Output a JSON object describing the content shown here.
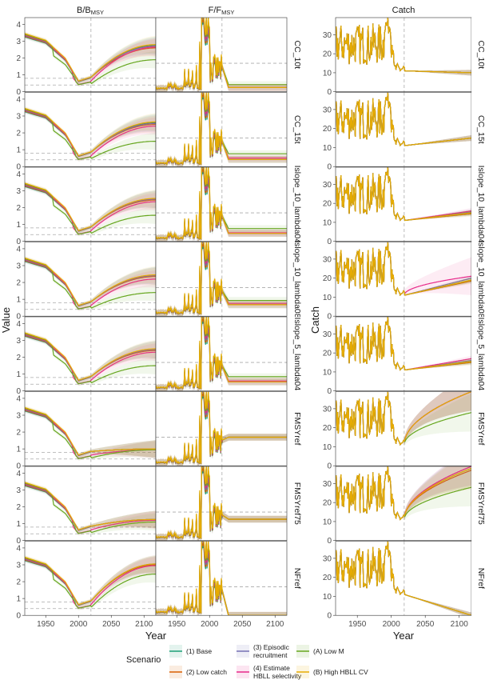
{
  "chart_data": [
    {
      "type": "line",
      "panel_group": "left",
      "columns": [
        {
          "title_main": "B/B",
          "title_sub": "MSY",
          "ylim": [
            0,
            4.4
          ],
          "yticks": [
            0,
            1,
            2,
            3,
            4
          ]
        },
        {
          "title_main": "F/F",
          "title_sub": "MSY",
          "ylim": [
            0,
            2.6
          ],
          "yticks": []
        }
      ],
      "xlabel": "Year",
      "ylabel": "Value",
      "xlim": [
        1918,
        2118
      ],
      "xticks": [
        1950,
        2000,
        2050,
        2100
      ],
      "projection_start": 2019,
      "b_reference_lines": [
        0.4,
        0.8
      ],
      "f_reference_line": 1.0
    },
    {
      "type": "line",
      "panel_group": "right",
      "title": "Catch",
      "xlabel": "Year",
      "ylabel": "Catch",
      "xlim": [
        1918,
        2118
      ],
      "xticks": [
        1950,
        2000,
        2050,
        2100
      ],
      "ylim": [
        0,
        39
      ],
      "yticks": [
        0,
        10,
        20,
        30
      ],
      "projection_start": 2019
    }
  ],
  "rows": [
    {
      "label": "CC_10t",
      "b_end": [
        2.75,
        2.6,
        2.7,
        2.65,
        1.9,
        2.8
      ],
      "f_end": [
        0.15,
        0.15,
        0.15,
        0.15,
        0.25,
        0.15
      ],
      "catch_end": [
        10,
        10,
        10,
        10,
        10,
        10
      ]
    },
    {
      "label": "CC_15t",
      "b_end": [
        2.6,
        2.5,
        2.55,
        2.4,
        1.5,
        2.65
      ],
      "f_end": [
        0.25,
        0.25,
        0.25,
        0.3,
        0.45,
        0.25
      ],
      "catch_end": [
        15,
        15,
        15,
        15,
        15,
        15
      ]
    },
    {
      "label": "Islope_10_lambda04",
      "b_end": [
        2.5,
        2.45,
        2.5,
        2.35,
        1.55,
        2.55
      ],
      "f_end": [
        0.28,
        0.28,
        0.28,
        0.3,
        0.45,
        0.28
      ],
      "catch_end": [
        15,
        14.5,
        15.5,
        16,
        15,
        15
      ]
    },
    {
      "label": "Islope_10_lambda08",
      "b_end": [
        2.4,
        2.35,
        2.4,
        2.2,
        1.4,
        2.45
      ],
      "f_end": [
        0.4,
        0.4,
        0.4,
        0.45,
        0.55,
        0.4
      ],
      "catch_end": [
        19,
        18.5,
        20,
        21,
        19,
        19
      ]
    },
    {
      "label": "Islope_5_lambda04",
      "b_end": [
        2.45,
        2.4,
        2.45,
        2.3,
        1.5,
        2.5
      ],
      "f_end": [
        0.32,
        0.32,
        0.32,
        0.35,
        0.5,
        0.32
      ],
      "catch_end": [
        15.5,
        15,
        16,
        17,
        15.5,
        15.5
      ]
    },
    {
      "label": "FMSYref",
      "b_end": [
        1.0,
        1.0,
        1.0,
        0.95,
        0.95,
        1.0
      ],
      "f_end": [
        1.0,
        1.0,
        1.0,
        1.0,
        1.0,
        1.0
      ],
      "catch_end": [
        39,
        39,
        39,
        39,
        28,
        39
      ]
    },
    {
      "label": "FMSYref75",
      "b_end": [
        1.25,
        1.25,
        1.25,
        1.2,
        1.1,
        1.25
      ],
      "f_end": [
        0.75,
        0.75,
        0.75,
        0.75,
        0.75,
        0.75
      ],
      "catch_end": [
        38,
        37,
        39,
        39,
        28,
        38
      ]
    },
    {
      "label": "NFref",
      "b_end": [
        3.0,
        3.0,
        3.05,
        2.95,
        2.45,
        3.05
      ],
      "f_end": [
        0,
        0,
        0,
        0,
        0,
        0
      ],
      "catch_end": [
        0,
        0,
        0,
        0,
        0,
        0
      ]
    }
  ],
  "series": [
    {
      "name": "(1) Base",
      "color": "#1b9e77"
    },
    {
      "name": "(2) Low catch",
      "color": "#d95f02"
    },
    {
      "name": "(3) Episodic recruitment",
      "color": "#7570b3"
    },
    {
      "name": "(4) Estimate HBLL selectivity",
      "color": "#e7298a"
    },
    {
      "name": "(A) Low M",
      "color": "#66a61e"
    },
    {
      "name": "(B) High HBLL CV",
      "color": "#e6ab02"
    }
  ],
  "legend": {
    "title": "Scenario",
    "entries": [
      {
        "lines": [
          "(1) Base"
        ]
      },
      {
        "lines": [
          "(2) Low catch"
        ]
      },
      {
        "lines": [
          "(3) Episodic",
          "recruitment"
        ]
      },
      {
        "lines": [
          "(4) Estimate",
          "HBLL selectivity"
        ]
      },
      {
        "lines": [
          "(A) Low M"
        ]
      },
      {
        "lines": [
          "(B) High HBLL CV"
        ]
      }
    ]
  },
  "style": {
    "panel_bg": "#ffffff",
    "panel_border": "#333333",
    "strip_bg": "#ffffff",
    "ref_line": "#aaaaaa"
  }
}
